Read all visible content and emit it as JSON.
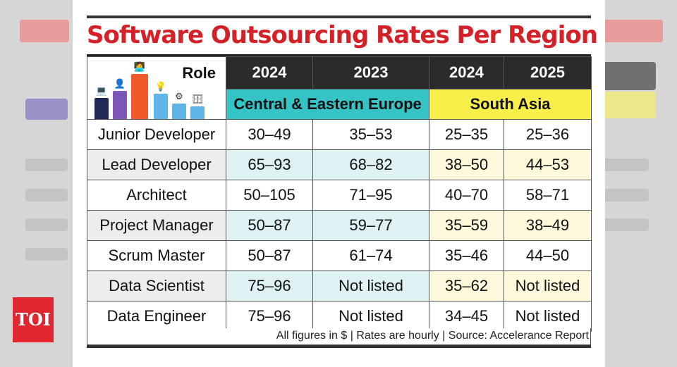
{
  "title": "Software Outsourcing Rates Per Region",
  "header": {
    "role_label": "Role",
    "years": [
      "2024",
      "2023",
      "2024",
      "2025"
    ],
    "region_eu": "Central & Eastern Europe",
    "region_sa": "South Asia"
  },
  "rows": [
    {
      "role": "Junior Developer",
      "v": [
        "30–49",
        "35–53",
        "25–35",
        "25–36"
      ]
    },
    {
      "role": "Lead Developer",
      "v": [
        "65–93",
        "68–82",
        "38–50",
        "44–53"
      ]
    },
    {
      "role": "Architect",
      "v": [
        "50–105",
        "71–95",
        "40–70",
        "58–71"
      ]
    },
    {
      "role": "Project Manager",
      "v": [
        "50–87",
        "59–77",
        "35–59",
        "38–49"
      ]
    },
    {
      "role": "Scrum Master",
      "v": [
        "50–87",
        "61–74",
        "35–46",
        "44–50"
      ]
    },
    {
      "role": "Data Scientist",
      "v": [
        "75–96",
        "Not listed",
        "35–62",
        "Not listed"
      ]
    },
    {
      "role": "Data Engineer",
      "v": [
        "75–96",
        "Not listed",
        "34–45",
        "Not listed"
      ]
    }
  ],
  "footer": "All figures in $ | Rates are hourly | Source: Accelerance Report",
  "badge": "TOI",
  "colors": {
    "title": "#d42026",
    "eu_header": "#35c4c6",
    "sa_header": "#f7ee4a",
    "badge": "#e0262e"
  },
  "icons": [
    "laptop-icon",
    "person-icon",
    "developer-icon",
    "lightbulb-icon",
    "gear-head-icon",
    "database-icon"
  ]
}
